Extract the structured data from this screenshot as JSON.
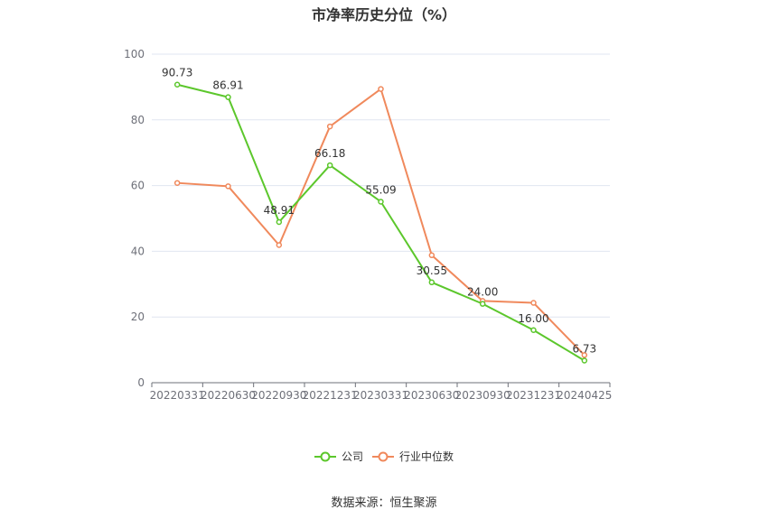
{
  "chart_data": {
    "type": "line",
    "title": "市净率历史分位（%）",
    "categories": [
      "20220331",
      "20220630",
      "20220930",
      "20221231",
      "20230331",
      "20230630",
      "20230930",
      "20231231",
      "20240425"
    ],
    "ylim": [
      0,
      100
    ],
    "yticks": [
      "0",
      "20",
      "40",
      "60",
      "80",
      "100"
    ],
    "grid": true,
    "legend_position": "bottom",
    "series": [
      {
        "name": "公司",
        "color": "#5cc72c",
        "values": [
          90.73,
          86.91,
          48.91,
          66.18,
          55.09,
          30.55,
          24.0,
          16.0,
          6.73
        ],
        "labels": [
          "90.73",
          "86.91",
          "48.91",
          "66.18",
          "55.09",
          "30.55",
          "24.00",
          "16.00",
          "6.73"
        ]
      },
      {
        "name": "行业中位数",
        "color": "#f0895c",
        "values": [
          60.8,
          59.8,
          41.9,
          78.0,
          89.4,
          38.8,
          24.9,
          24.3,
          8.4
        ]
      }
    ]
  },
  "source": "数据来源：恒生聚源"
}
